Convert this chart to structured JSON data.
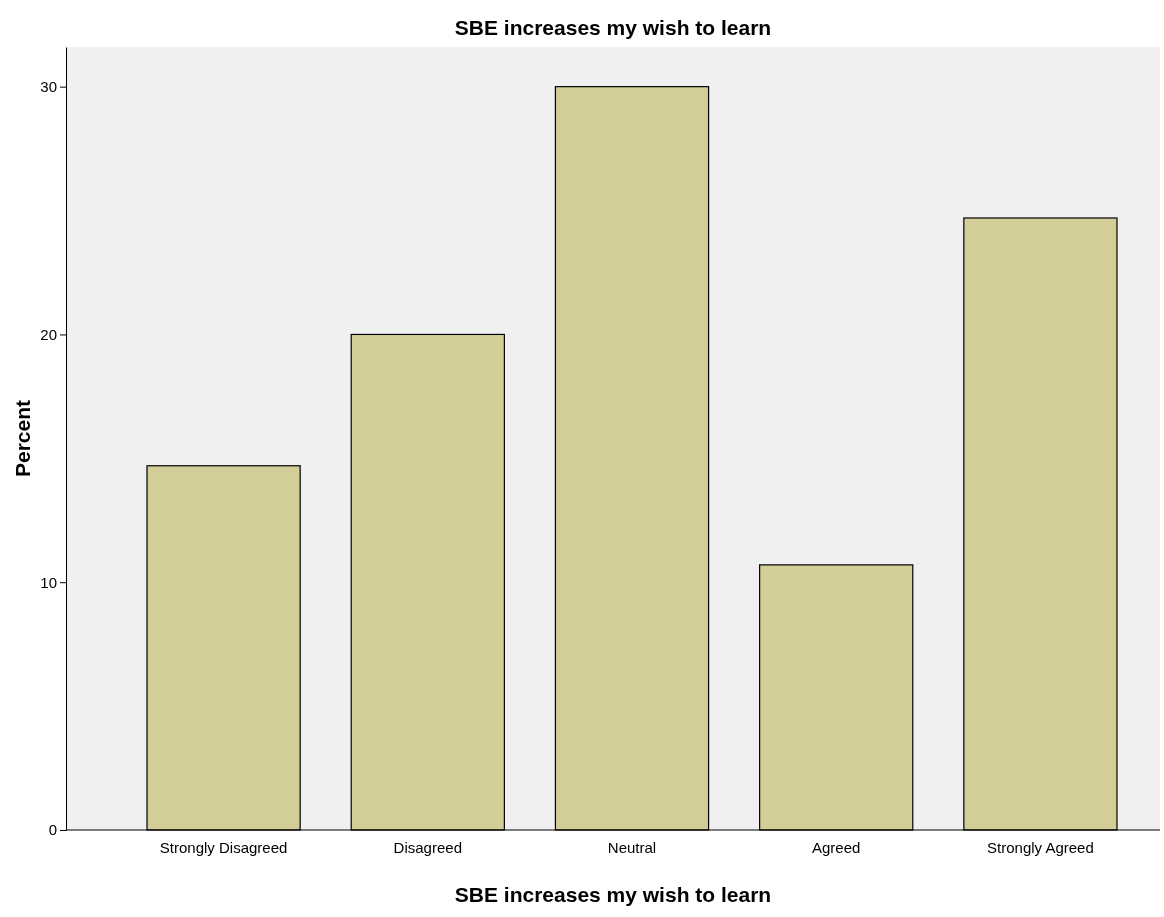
{
  "chart_data": {
    "type": "bar",
    "title": "SBE increases my wish to learn",
    "xlabel": "SBE increases my wish to learn",
    "ylabel": "Percent",
    "categories": [
      "Strongly Disagreed",
      "Disagreed",
      "Neutral",
      "Agreed",
      "Strongly Agreed"
    ],
    "values": [
      14.7,
      20.0,
      30.0,
      10.7,
      24.7
    ],
    "color": "#d3ce97",
    "ylim": [
      0,
      31.6
    ],
    "yticks": [
      0,
      10,
      20,
      30
    ],
    "grid": false
  }
}
